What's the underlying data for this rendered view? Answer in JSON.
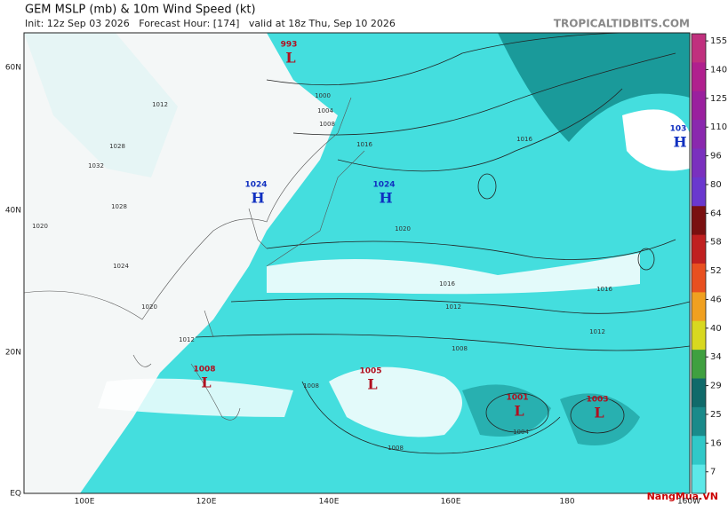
{
  "header": {
    "title": "GEM MSLP (mb) & 10m Wind Speed (kt)",
    "subtitle": "Init: 12z Sep 03 2026   Forecast Hour: [174]   valid at 18z Thu, Sep 10 2026",
    "site": "TROPICALTIDBITS.COM"
  },
  "map": {
    "lat_labels": [
      "60N",
      "40N",
      "20N",
      "EQ"
    ],
    "lon_labels": [
      "100E",
      "120E",
      "140E",
      "160E",
      "180",
      "160W"
    ],
    "centers": [
      {
        "value": "993",
        "letter": "L"
      },
      {
        "value": "1024",
        "letter": "H"
      },
      {
        "value": "1024",
        "letter": "H"
      },
      {
        "value": "103",
        "letter": "H"
      },
      {
        "value": "1008",
        "letter": "L"
      },
      {
        "value": "1005",
        "letter": "L"
      },
      {
        "value": "1001",
        "letter": "L"
      },
      {
        "value": "1003",
        "letter": "L"
      }
    ],
    "isobar_labels": [
      "1000",
      "1004",
      "1008",
      "1012",
      "1016",
      "1020",
      "1016",
      "1012",
      "1008",
      "1012",
      "1016",
      "1008",
      "1004",
      "1008",
      "1028",
      "1032",
      "1028",
      "1020",
      "1024",
      "1020",
      "1012",
      "1016"
    ]
  },
  "colorbar": {
    "ticks": [
      155,
      140,
      125,
      110,
      96,
      80,
      64,
      58,
      52,
      46,
      40,
      34,
      29,
      25,
      16,
      7
    ],
    "colors": [
      "#c0307e",
      "#b0208e",
      "#9a209e",
      "#8a28ae",
      "#7a30be",
      "#6a38ce",
      "#7a1010",
      "#c02020",
      "#e85020",
      "#f0a020",
      "#d8d820",
      "#40a040",
      "#106a6a",
      "#1a8a8a",
      "#30c8c8",
      "#5ce8e8"
    ]
  },
  "watermark": "NangMua.VN"
}
